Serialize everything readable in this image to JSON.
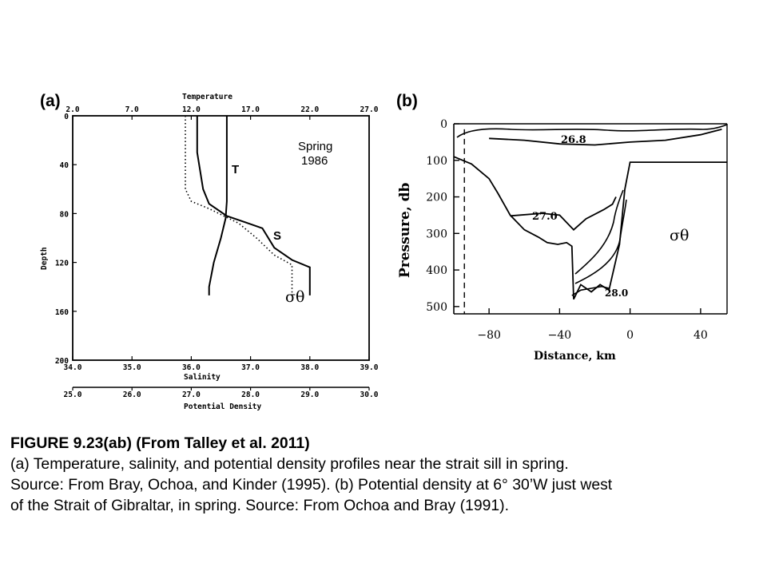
{
  "figure": {
    "panel_a": {
      "label": "(a)",
      "top_axis_title": "Temperature",
      "temperature_ticks": [
        "2.0",
        "7.0",
        "12.0",
        "17.0",
        "22.0",
        "27.0"
      ],
      "depth_axis_title": "Depth",
      "depth_ticks": [
        "0",
        "40",
        "80",
        "120",
        "160",
        "200"
      ],
      "salinity_ticks": [
        "34.0",
        "35.0",
        "36.0",
        "37.0",
        "38.0",
        "39.0"
      ],
      "salinity_axis_title": "Salinity",
      "density_ticks": [
        "25.0",
        "26.0",
        "27.0",
        "28.0",
        "29.0",
        "30.0"
      ],
      "density_axis_title": "Potential Density",
      "annotation": [
        "Spring",
        "1986"
      ],
      "curve_labels": {
        "temperature": "T",
        "salinity": "S",
        "density": "σθ"
      }
    },
    "panel_b": {
      "label": "(b)",
      "y_axis_title": "Pressure, db",
      "y_ticks": [
        "0",
        "100",
        "200",
        "300",
        "400",
        "500"
      ],
      "x_axis_title": "Distance, km",
      "x_ticks": [
        "−80",
        "−40",
        "0",
        "40"
      ],
      "contour_labels": [
        "26.8",
        "27.0",
        "28.0"
      ],
      "field_label": "σθ"
    }
  },
  "chart_data": [
    {
      "type": "line",
      "panel": "(a)",
      "y_axis": {
        "label": "Depth",
        "range": [
          0,
          200
        ],
        "inverted": true
      },
      "x_axes": [
        {
          "label": "Temperature",
          "position": "top",
          "range": [
            2.0,
            27.0
          ]
        },
        {
          "label": "Salinity",
          "position": "bottom",
          "range": [
            34.0,
            39.0
          ]
        },
        {
          "label": "Potential Density",
          "position": "bottom",
          "range": [
            25.0,
            30.0
          ]
        }
      ],
      "series": [
        {
          "name": "T",
          "axis": "Temperature",
          "style": "solid",
          "points": [
            [
              15.0,
              0
            ],
            [
              15.0,
              40
            ],
            [
              15.0,
              70
            ],
            [
              14.9,
              84
            ],
            [
              14.5,
              100
            ],
            [
              13.9,
              120
            ],
            [
              13.5,
              140
            ],
            [
              13.5,
              147
            ]
          ]
        },
        {
          "name": "S",
          "axis": "Salinity",
          "style": "solid",
          "points": [
            [
              36.1,
              0
            ],
            [
              36.1,
              30
            ],
            [
              36.2,
              60
            ],
            [
              36.3,
              72
            ],
            [
              36.6,
              82
            ],
            [
              36.9,
              87
            ],
            [
              37.2,
              92
            ],
            [
              37.4,
              108
            ],
            [
              37.7,
              118
            ],
            [
              38.0,
              124
            ],
            [
              38.0,
              132
            ],
            [
              38.0,
              147
            ]
          ]
        },
        {
          "name": "σθ",
          "axis": "Potential Density",
          "style": "dotted",
          "points": [
            [
              26.9,
              0
            ],
            [
              26.9,
              30
            ],
            [
              26.9,
              60
            ],
            [
              27.0,
              70
            ],
            [
              27.3,
              76
            ],
            [
              27.8,
              88
            ],
            [
              28.1,
              100
            ],
            [
              28.4,
              114
            ],
            [
              28.7,
              122
            ],
            [
              28.7,
              140
            ],
            [
              28.7,
              147
            ]
          ]
        }
      ]
    },
    {
      "type": "contour",
      "panel": "(b)",
      "x_axis": {
        "label": "Distance, km",
        "range": [
          -100,
          55
        ]
      },
      "y_axis": {
        "label": "Pressure, db",
        "range": [
          0,
          520
        ],
        "inverted": true
      },
      "variable": "σθ",
      "contours": [
        {
          "level": 26.8,
          "points": [
            [
              -80,
              40
            ],
            [
              -60,
              45
            ],
            [
              -40,
              55
            ],
            [
              -20,
              58
            ],
            [
              0,
              50
            ],
            [
              20,
              45
            ],
            [
              40,
              30
            ],
            [
              52,
              15
            ]
          ]
        },
        {
          "level": 27.0,
          "points": [
            [
              -68,
              252
            ],
            [
              -50,
              245
            ],
            [
              -40,
              250
            ],
            [
              -32,
              290
            ],
            [
              -25,
              260
            ],
            [
              -15,
              235
            ],
            [
              -10,
              220
            ],
            [
              -8,
              200
            ]
          ]
        },
        {
          "level": 28.0,
          "points": [
            [
              -33,
              470
            ],
            [
              -28,
              455
            ],
            [
              -22,
              450
            ],
            [
              -16,
              445
            ],
            [
              -12,
              450
            ]
          ]
        }
      ],
      "bottom_profile": [
        [
          -100,
          90
        ],
        [
          -90,
          110
        ],
        [
          -80,
          150
        ],
        [
          -75,
          190
        ],
        [
          -68,
          250
        ],
        [
          -60,
          290
        ],
        [
          -52,
          310
        ],
        [
          -47,
          325
        ],
        [
          -41,
          330
        ],
        [
          -36,
          325
        ],
        [
          -33,
          335
        ],
        [
          -32,
          480
        ],
        [
          -28,
          440
        ],
        [
          -22,
          460
        ],
        [
          -17,
          440
        ],
        [
          -12,
          455
        ],
        [
          -6,
          330
        ],
        [
          -3,
          180
        ],
        [
          0,
          105
        ],
        [
          55,
          105
        ]
      ],
      "reference_line_km": -94
    }
  ],
  "caption": {
    "title": "FIGURE 9.23(ab) (From Talley et al. 2011)",
    "lines": [
      "(a) Temperature, salinity, and potential density profiles near the strait sill in spring.",
      "Source: From Bray, Ochoa, and Kinder (1995). (b) Potential density at 6° 30’W just west",
      "of the Strait of Gibraltar, in spring. Source: From Ochoa and Bray (1991)."
    ]
  }
}
